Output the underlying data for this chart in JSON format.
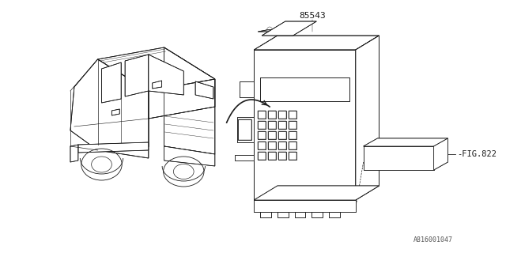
{
  "bg_color": "#ffffff",
  "line_color": "#1a1a1a",
  "fig_width": 6.4,
  "fig_height": 3.2,
  "dpi": 100,
  "part_number": "85543",
  "fig_ref": "-FIG.822",
  "catalog_number": "A816001047",
  "lw": 0.6
}
